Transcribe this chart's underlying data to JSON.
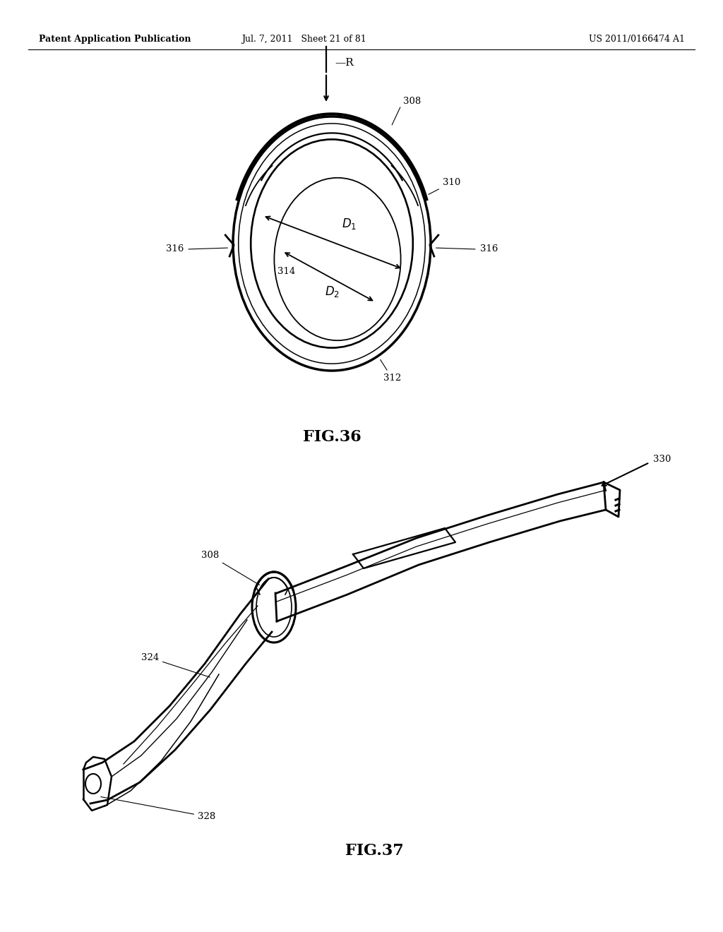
{
  "background_color": "#ffffff",
  "header_left": "Patent Application Publication",
  "header_mid": "Jul. 7, 2011   Sheet 21 of 81",
  "header_right": "US 2011/0166474 A1",
  "fig36_title": "FIG.36",
  "fig37_title": "FIG.37",
  "line_color": "#000000",
  "text_color": "#000000"
}
